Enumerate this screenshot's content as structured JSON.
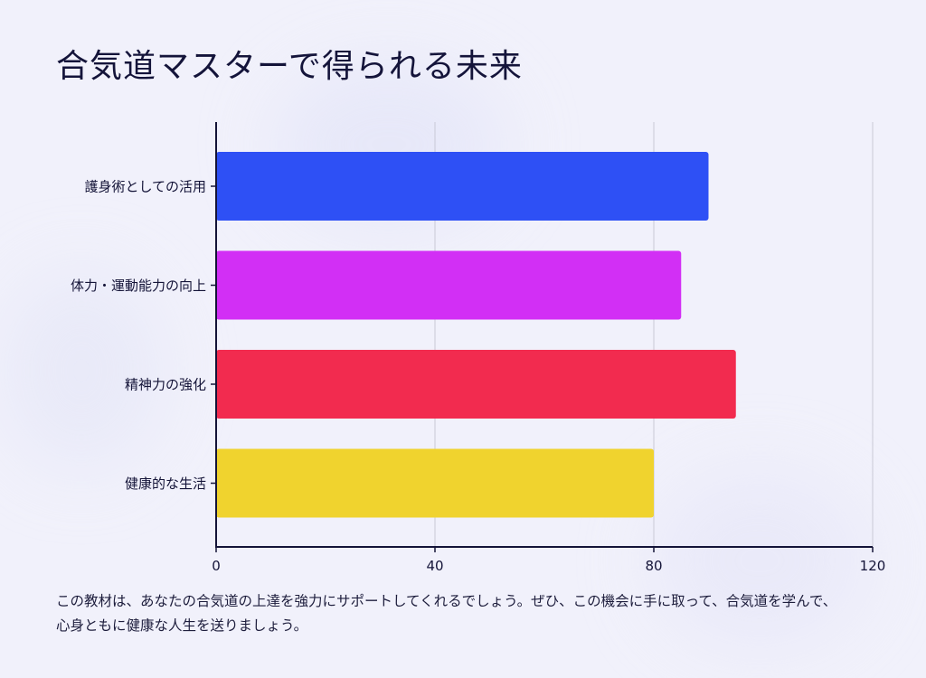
{
  "title": "合気道マスターで得られる未来",
  "caption": {
    "line1": "この教材は、あなたの合気道の上達を強力にサポートしてくれるでしょう。ぜひ、この機会に手に取って、合気道を学んで、",
    "line2": "心身ともに健康な人生を送りましょう。"
  },
  "colors": {
    "background": "#f1f1fb",
    "axis": "#141438",
    "grid": "#c9c9d6",
    "text": "#141438"
  },
  "chart_data": {
    "type": "bar",
    "orientation": "horizontal",
    "title": "合気道マスターで得られる未来",
    "xlabel": "",
    "ylabel": "",
    "xlim": [
      0,
      120
    ],
    "xticks": [
      0,
      40,
      80,
      120
    ],
    "grid": true,
    "categories": [
      "護身術としての活用",
      "体力・運動能力の向上",
      "精神力の強化",
      "健康的な生活"
    ],
    "values": [
      90,
      85,
      95,
      80
    ],
    "bar_colors": [
      "#2e50f5",
      "#d22ff5",
      "#f22b4f",
      "#f0d32e"
    ]
  }
}
